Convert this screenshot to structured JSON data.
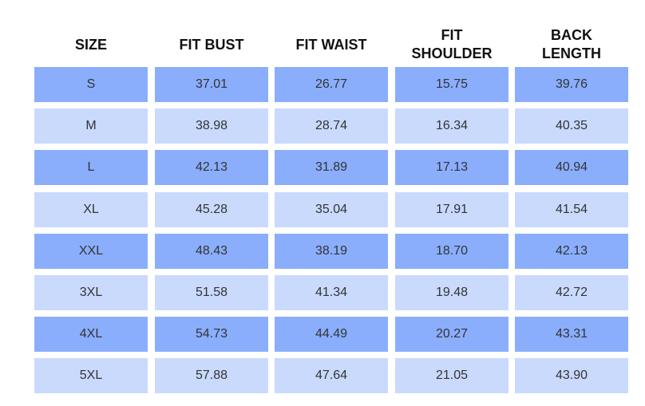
{
  "table": {
    "header": [
      [
        "SIZE"
      ],
      [
        "FIT BUST"
      ],
      [
        "FIT WAIST"
      ],
      [
        "FIT",
        "SHOULDER"
      ],
      [
        "BACK",
        "LENGTH"
      ]
    ],
    "rows": [
      [
        "S",
        "37.01",
        "26.77",
        "15.75",
        "39.76"
      ],
      [
        "M",
        "38.98",
        "28.74",
        "16.34",
        "40.35"
      ],
      [
        "L",
        "42.13",
        "31.89",
        "17.13",
        "40.94"
      ],
      [
        "XL",
        "45.28",
        "35.04",
        "17.91",
        "41.54"
      ],
      [
        "XXL",
        "48.43",
        "38.19",
        "18.70",
        "42.13"
      ],
      [
        "3XL",
        "51.58",
        "41.34",
        "19.48",
        "42.72"
      ],
      [
        "4XL",
        "54.73",
        "44.49",
        "20.27",
        "43.31"
      ],
      [
        "5XL",
        "57.88",
        "47.64",
        "21.05",
        "43.90"
      ]
    ]
  }
}
